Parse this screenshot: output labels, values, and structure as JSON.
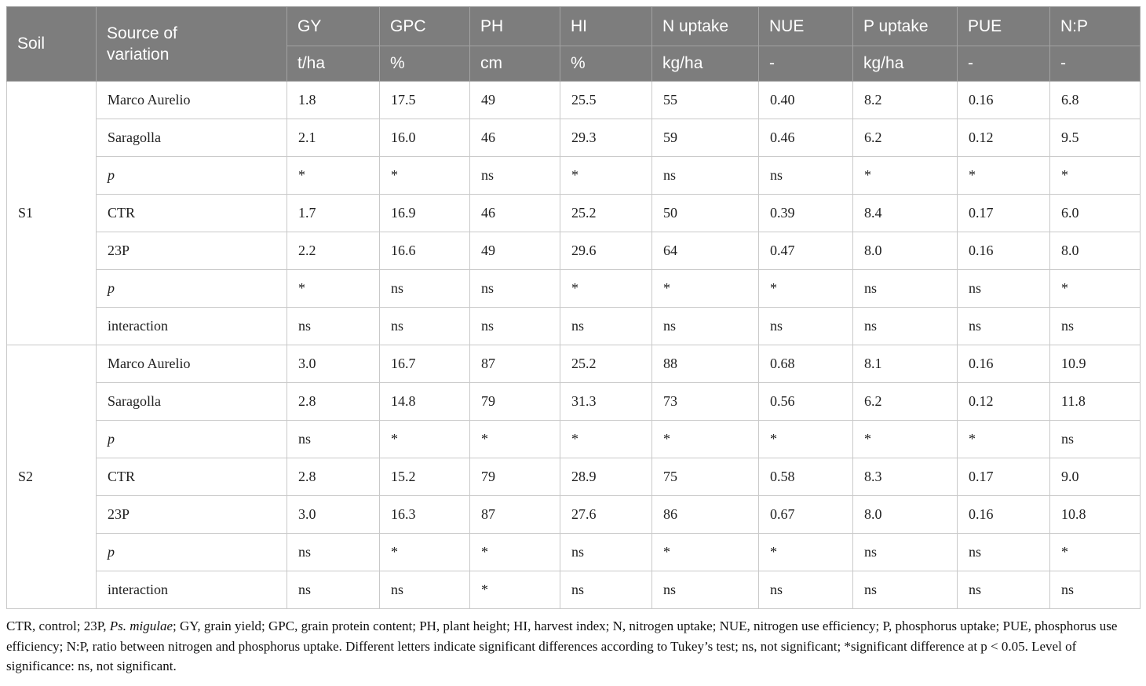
{
  "table": {
    "header": {
      "soil": "Soil",
      "source": "Source of variation",
      "columns": [
        {
          "label": "GY",
          "unit": "t/ha"
        },
        {
          "label": "GPC",
          "unit": "%"
        },
        {
          "label": "PH",
          "unit": "cm"
        },
        {
          "label": "HI",
          "unit": "%"
        },
        {
          "label": "N uptake",
          "unit": "kg/ha"
        },
        {
          "label": "NUE",
          "unit": "-"
        },
        {
          "label": "P uptake",
          "unit": "kg/ha"
        },
        {
          "label": "PUE",
          "unit": "-"
        },
        {
          "label": "N:P",
          "unit": "-"
        }
      ]
    },
    "sections": [
      {
        "soil": "S1",
        "rows": [
          {
            "label": "Marco Aurelio",
            "italic": false,
            "values": [
              "1.8",
              "17.5",
              "49",
              "25.5",
              "55",
              "0.40",
              "8.2",
              "0.16",
              "6.8"
            ]
          },
          {
            "label": "Saragolla",
            "italic": false,
            "values": [
              "2.1",
              "16.0",
              "46",
              "29.3",
              "59",
              "0.46",
              "6.2",
              "0.12",
              "9.5"
            ]
          },
          {
            "label": "p",
            "italic": true,
            "values": [
              "*",
              "*",
              "ns",
              "*",
              "ns",
              "ns",
              "*",
              "*",
              "*"
            ]
          },
          {
            "label": "CTR",
            "italic": false,
            "values": [
              "1.7",
              "16.9",
              "46",
              "25.2",
              "50",
              "0.39",
              "8.4",
              "0.17",
              "6.0"
            ]
          },
          {
            "label": "23P",
            "italic": false,
            "values": [
              "2.2",
              "16.6",
              "49",
              "29.6",
              "64",
              "0.47",
              "8.0",
              "0.16",
              "8.0"
            ]
          },
          {
            "label": "p",
            "italic": true,
            "values": [
              "*",
              "ns",
              "ns",
              "*",
              "*",
              "*",
              "ns",
              "ns",
              "*"
            ]
          },
          {
            "label": "interaction",
            "italic": false,
            "values": [
              "ns",
              "ns",
              "ns",
              "ns",
              "ns",
              "ns",
              "ns",
              "ns",
              "ns"
            ]
          }
        ]
      },
      {
        "soil": "S2",
        "rows": [
          {
            "label": "Marco Aurelio",
            "italic": false,
            "values": [
              "3.0",
              "16.7",
              "87",
              "25.2",
              "88",
              "0.68",
              "8.1",
              "0.16",
              "10.9"
            ]
          },
          {
            "label": "Saragolla",
            "italic": false,
            "values": [
              "2.8",
              "14.8",
              "79",
              "31.3",
              "73",
              "0.56",
              "6.2",
              "0.12",
              "11.8"
            ]
          },
          {
            "label": "p",
            "italic": true,
            "values": [
              "ns",
              "*",
              "*",
              "*",
              "*",
              "*",
              "*",
              "*",
              "ns"
            ]
          },
          {
            "label": "CTR",
            "italic": false,
            "values": [
              "2.8",
              "15.2",
              "79",
              "28.9",
              "75",
              "0.58",
              "8.3",
              "0.17",
              "9.0"
            ]
          },
          {
            "label": "23P",
            "italic": false,
            "values": [
              "3.0",
              "16.3",
              "87",
              "27.6",
              "86",
              "0.67",
              "8.0",
              "0.16",
              "10.8"
            ]
          },
          {
            "label": "p",
            "italic": true,
            "values": [
              "ns",
              "*",
              "*",
              "ns",
              "*",
              "*",
              "ns",
              "ns",
              "*"
            ]
          },
          {
            "label": "interaction",
            "italic": false,
            "values": [
              "ns",
              "ns",
              "*",
              "ns",
              "ns",
              "ns",
              "ns",
              "ns",
              "ns"
            ]
          }
        ]
      }
    ]
  },
  "footnote": {
    "part1": "CTR, control; 23P, ",
    "italic": "Ps. migulae",
    "part2": "; GY, grain yield; GPC, grain protein content; PH, plant height; HI, harvest index; N, nitrogen uptake; NUE, nitrogen use efficiency; P, phosphorus uptake; PUE, phosphorus use efficiency; N:P, ratio between nitrogen and phosphorus uptake. Different letters indicate significant differences according to Tukey’s test; ns, not significant; *significant difference at p < 0.05. Level of significance: ns, not significant."
  },
  "colors": {
    "header_bg": "#7d7d7d",
    "header_text": "#ffffff",
    "header_border": "#a2a2a2",
    "body_border": "#c9c9c9",
    "body_text": "#1f1f1f"
  }
}
